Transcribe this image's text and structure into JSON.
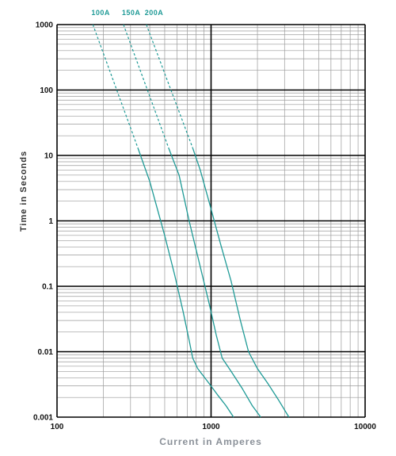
{
  "chart_data": {
    "type": "line",
    "xscale": "log",
    "yscale": "log",
    "xlabel": "Current in Amperes",
    "ylabel": "Time in Seconds",
    "xlim": [
      100,
      10000
    ],
    "ylim": [
      0.001,
      1000
    ],
    "grid": true,
    "x_ticks": [
      {
        "value": 100,
        "label": "100"
      },
      {
        "value": 1000,
        "label": "1000"
      },
      {
        "value": 10000,
        "label": "10000"
      }
    ],
    "y_ticks": [
      {
        "value": 1000,
        "label": "1000"
      },
      {
        "value": 100,
        "label": "100"
      },
      {
        "value": 10,
        "label": "10"
      },
      {
        "value": 1,
        "label": "1"
      },
      {
        "value": 0.1,
        "label": "0.1"
      },
      {
        "value": 0.01,
        "label": "0.01"
      },
      {
        "value": 0.001,
        "label": "0.001"
      }
    ],
    "colors": {
      "series": "#1e9a96",
      "grid_major": "#000000",
      "grid_minor": "#9a9a9a",
      "tick_text": "#111111",
      "axis_title": "#8a9098"
    },
    "series": [
      {
        "name": "100A",
        "dashed_points": [
          [
            171,
            1000
          ],
          [
            335,
            13
          ]
        ],
        "solid_points": [
          [
            335,
            13
          ],
          [
            400,
            4
          ],
          [
            500,
            0.6
          ],
          [
            580,
            0.15
          ],
          [
            660,
            0.04
          ],
          [
            720,
            0.015
          ],
          [
            760,
            0.008
          ],
          [
            820,
            0.0055
          ],
          [
            950,
            0.0035
          ],
          [
            1100,
            0.0022
          ],
          [
            1250,
            0.0015
          ],
          [
            1400,
            0.001
          ]
        ]
      },
      {
        "name": "150A",
        "dashed_points": [
          [
            270,
            1000
          ],
          [
            530,
            13
          ]
        ],
        "solid_points": [
          [
            530,
            13
          ],
          [
            620,
            5
          ],
          [
            720,
            1
          ],
          [
            850,
            0.2
          ],
          [
            980,
            0.05
          ],
          [
            1080,
            0.018
          ],
          [
            1180,
            0.008
          ],
          [
            1350,
            0.005
          ],
          [
            1600,
            0.0027
          ],
          [
            1850,
            0.0015
          ],
          [
            2100,
            0.001
          ]
        ]
      },
      {
        "name": "200A",
        "dashed_points": [
          [
            380,
            1000
          ],
          [
            760,
            13
          ]
        ],
        "solid_points": [
          [
            760,
            13
          ],
          [
            850,
            6
          ],
          [
            980,
            1.8
          ],
          [
            1150,
            0.45
          ],
          [
            1350,
            0.12
          ],
          [
            1550,
            0.03
          ],
          [
            1750,
            0.01
          ],
          [
            2000,
            0.0055
          ],
          [
            2350,
            0.0032
          ],
          [
            2750,
            0.0018
          ],
          [
            3200,
            0.001
          ]
        ]
      }
    ]
  }
}
